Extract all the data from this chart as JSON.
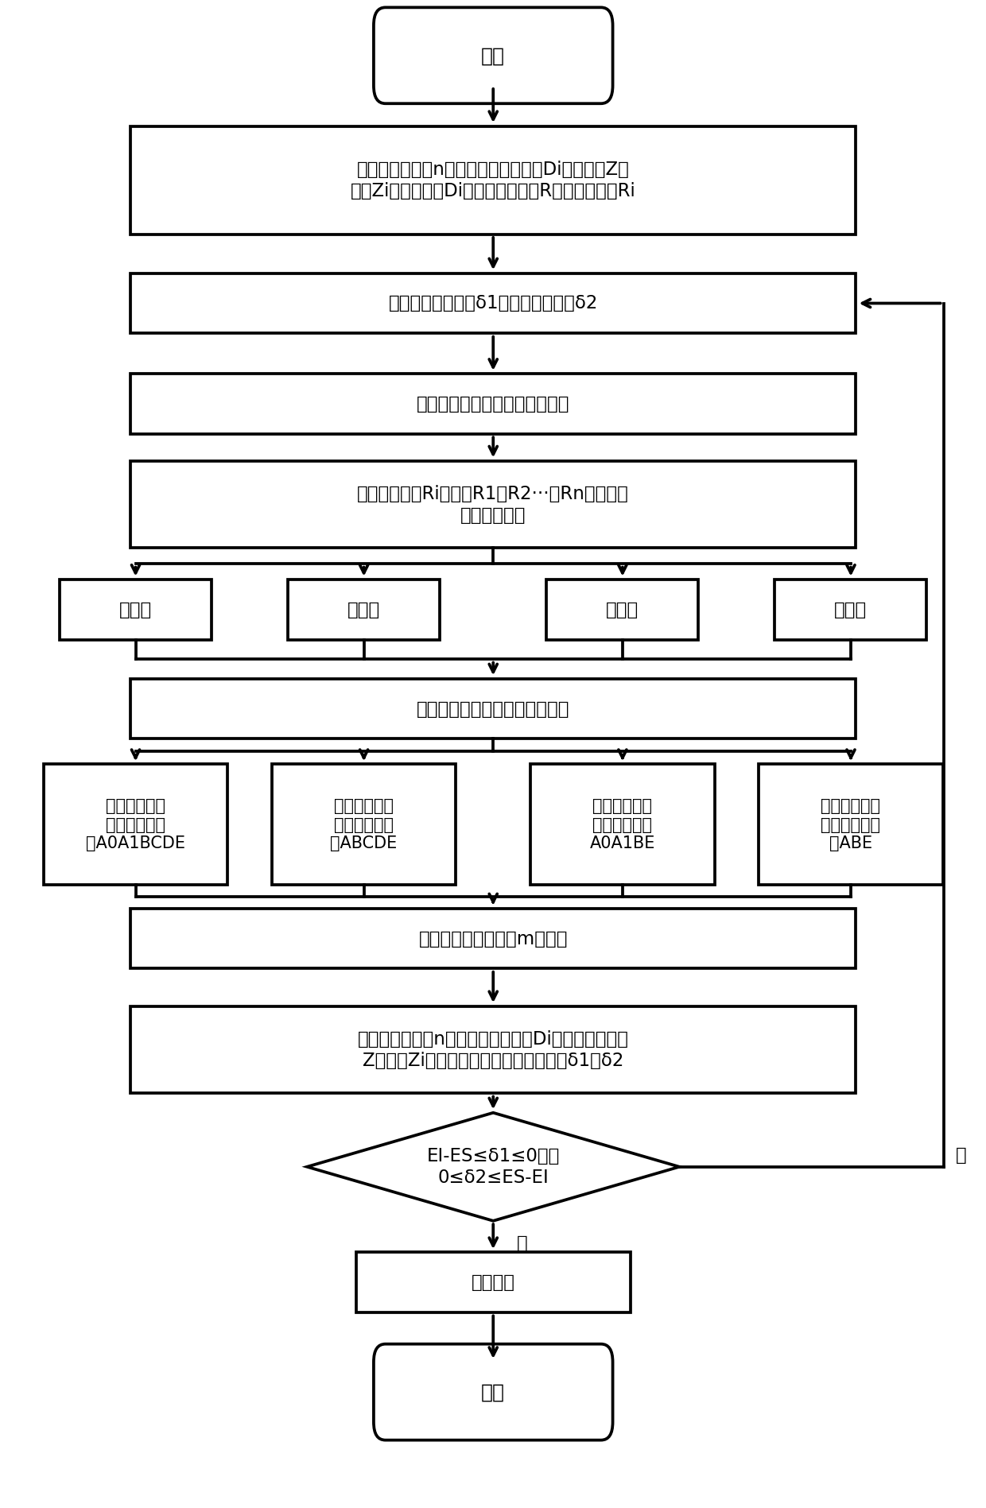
{
  "bg_color": "#ffffff",
  "box_color": "#ffffff",
  "border_color": "#000000",
  "text_color": "#000000",
  "lw": 1.8,
  "start_label": "开始",
  "end_label": "结束",
  "box1_label": "测量被加工孔段n个等距截面处的孔径Di及对应的Z向\n坐标Zi，并将孔径Di存储入数控系统R变量，对应为Ri",
  "box2_label": "计算最小加工余量δ1和最大加工余量δ2",
  "box3_label": "判断截面孔径是否进入尺寸公差",
  "box4_label": "根据测量结果Ri，对比R1、R2···、Rn的大小，\n确定内孔形状",
  "shape_labels": [
    "腰鼓形",
    "马鞍形",
    "右锥形",
    "左锥形"
  ],
  "box5_label": "根据内孔形状确定砂轮运动轨迹",
  "traj_labels": [
    "腰鼓形内孔：\n砂轮运动轨迹\n为A0A1BCDE",
    "马鞍形内孔：\n砂轮运动轨迹\n为ABCDE",
    "右锥形内孔：\n砂轮运动轨迹\nA0A1BE",
    "左锥形内孔：\n砂轮运动轨迹\n为ABE"
  ],
  "box6_label": "砂轮沿轨迹往复磨削m个循环",
  "box7_label": "测量被加工孔段n个等距截面处孔径Di及其对应的机床\nZ向坐标Zi，计算出最小和最大加工余量δ1、δ2",
  "diamond_label": "EI-ES≤δ1≤0，且\n0≤δ2≤ES-EI",
  "box8_label": "完成加工",
  "yes_label": "是",
  "no_label": "否"
}
